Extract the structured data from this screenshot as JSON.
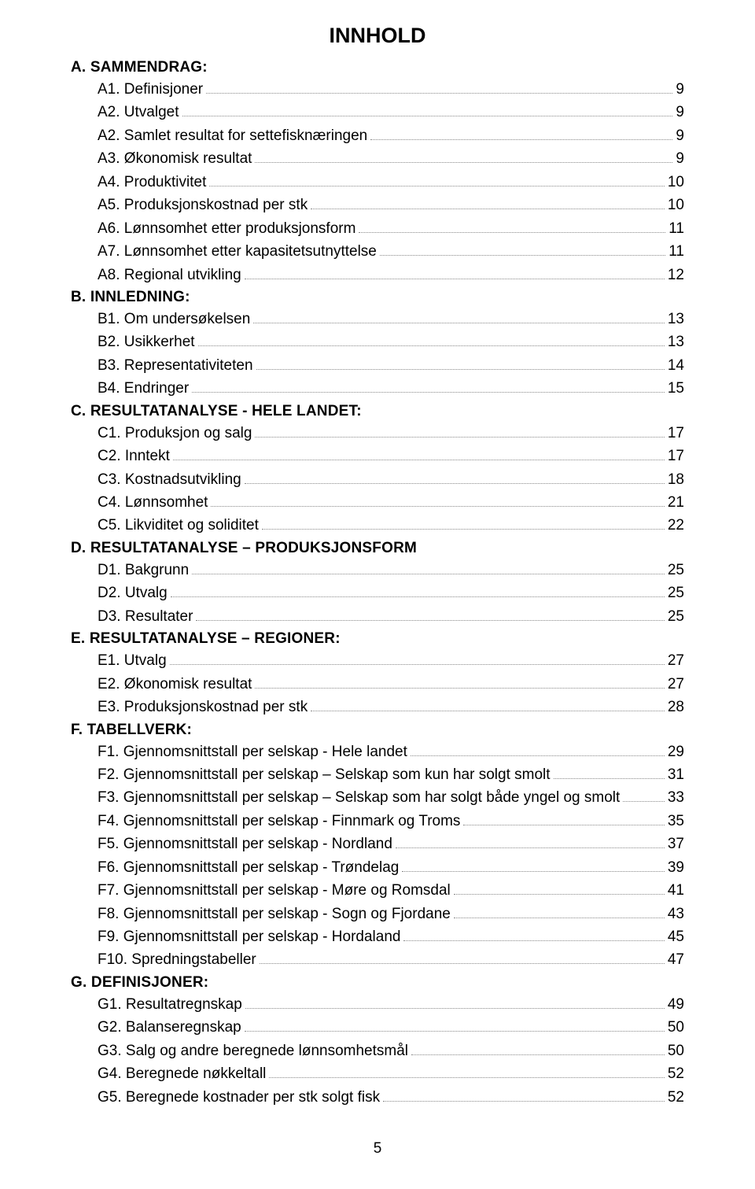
{
  "title": "INNHOLD",
  "footer_page": "5",
  "colors": {
    "background": "#ffffff",
    "text": "#000000",
    "dots": "#888888"
  },
  "sections": [
    {
      "heading": "A. SAMMENDRAG:",
      "items": [
        {
          "label": "A1. Definisjoner",
          "page": "9"
        },
        {
          "label": "A2. Utvalget",
          "page": "9"
        },
        {
          "label": "A2. Samlet resultat for settefisknæringen",
          "page": "9"
        },
        {
          "label": "A3. Økonomisk resultat",
          "page": "9"
        },
        {
          "label": "A4. Produktivitet",
          "page": "10"
        },
        {
          "label": "A5. Produksjonskostnad per stk",
          "page": "10"
        },
        {
          "label": "A6. Lønnsomhet etter produksjonsform",
          "page": "11"
        },
        {
          "label": "A7. Lønnsomhet etter kapasitetsutnyttelse",
          "page": "11"
        },
        {
          "label": "A8. Regional utvikling",
          "page": "12"
        }
      ]
    },
    {
      "heading": "B. INNLEDNING:",
      "items": [
        {
          "label": "B1. Om undersøkelsen",
          "page": "13"
        },
        {
          "label": "B2. Usikkerhet",
          "page": "13"
        },
        {
          "label": "B3. Representativiteten",
          "page": "14"
        },
        {
          "label": "B4. Endringer",
          "page": "15"
        }
      ]
    },
    {
      "heading": "C. RESULTATANALYSE - HELE LANDET:",
      "items": [
        {
          "label": "C1. Produksjon og salg",
          "page": "17"
        },
        {
          "label": "C2. Inntekt",
          "page": "17"
        },
        {
          "label": "C3. Kostnadsutvikling",
          "page": "18"
        },
        {
          "label": "C4. Lønnsomhet",
          "page": "21"
        },
        {
          "label": "C5. Likviditet og soliditet",
          "page": "22"
        }
      ]
    },
    {
      "heading": "D. RESULTATANALYSE – PRODUKSJONSFORM",
      "items": [
        {
          "label": "D1. Bakgrunn",
          "page": "25"
        },
        {
          "label": "D2. Utvalg",
          "page": "25"
        },
        {
          "label": "D3. Resultater",
          "page": "25"
        }
      ]
    },
    {
      "heading": "E. RESULTATANALYSE – REGIONER:",
      "items": [
        {
          "label": "E1. Utvalg",
          "page": "27"
        },
        {
          "label": "E2. Økonomisk resultat",
          "page": "27"
        },
        {
          "label": "E3. Produksjonskostnad per stk",
          "page": "28"
        }
      ]
    },
    {
      "heading": "F. TABELLVERK:",
      "items": [
        {
          "label": "F1. Gjennomsnittstall per selskap - Hele landet",
          "page": "29"
        },
        {
          "label": "F2. Gjennomsnittstall per selskap – Selskap som kun har solgt smolt",
          "page": "31"
        },
        {
          "label": "F3. Gjennomsnittstall per selskap – Selskap som har solgt både yngel og smolt",
          "page": "33"
        },
        {
          "label": "F4. Gjennomsnittstall per selskap - Finnmark og Troms",
          "page": "35"
        },
        {
          "label": "F5. Gjennomsnittstall per selskap - Nordland",
          "page": "37"
        },
        {
          "label": "F6. Gjennomsnittstall per selskap - Trøndelag",
          "page": "39"
        },
        {
          "label": "F7. Gjennomsnittstall per selskap - Møre og Romsdal",
          "page": "41"
        },
        {
          "label": "F8. Gjennomsnittstall per selskap - Sogn og Fjordane",
          "page": "43"
        },
        {
          "label": "F9. Gjennomsnittstall per selskap - Hordaland",
          "page": "45"
        },
        {
          "label": "F10. Spredningstabeller",
          "page": "47"
        }
      ]
    },
    {
      "heading": "G. DEFINISJONER:",
      "items": [
        {
          "label": "G1. Resultatregnskap",
          "page": "49"
        },
        {
          "label": "G2. Balanseregnskap",
          "page": "50"
        },
        {
          "label": "G3. Salg og andre beregnede lønnsomhetsmål",
          "page": "50"
        },
        {
          "label": "G4. Beregnede nøkkeltall",
          "page": "52"
        },
        {
          "label": "G5. Beregnede kostnader per stk solgt fisk",
          "page": "52"
        }
      ]
    }
  ]
}
